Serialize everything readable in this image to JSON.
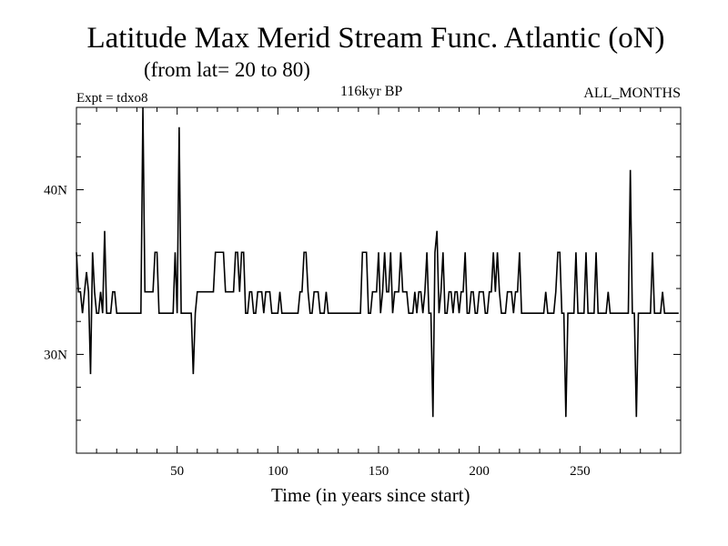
{
  "chart_data": {
    "type": "line",
    "title": "Latitude Max Merid Stream Func. Atlantic (oN)",
    "subtitle": "(from lat= 20 to 80)",
    "annotations": {
      "experiment": "Expt = tdxo8",
      "period": "116kyr BP",
      "months": "ALL_MONTHS"
    },
    "xlabel": "Time (in years since start)",
    "ylabel": "",
    "xlim": [
      0,
      300
    ],
    "ylim": [
      24,
      45
    ],
    "x_ticks": [
      50,
      100,
      150,
      200,
      250
    ],
    "x_tick_labels": [
      "50",
      "100",
      "150",
      "200",
      "250"
    ],
    "y_ticks": [
      30,
      40
    ],
    "y_tick_labels": [
      "30N",
      "40N"
    ],
    "grid": false,
    "series": [
      {
        "color": "#000000",
        "points": [
          [
            0,
            36.2
          ],
          [
            1,
            33.8
          ],
          [
            2,
            33.8
          ],
          [
            3,
            32.5
          ],
          [
            4,
            33.8
          ],
          [
            5,
            35
          ],
          [
            6,
            33.8
          ],
          [
            7,
            28.8
          ],
          [
            8,
            36.2
          ],
          [
            9,
            33.8
          ],
          [
            10,
            32.5
          ],
          [
            11,
            32.5
          ],
          [
            12,
            33.8
          ],
          [
            13,
            32.5
          ],
          [
            14,
            37.5
          ],
          [
            15,
            32.5
          ],
          [
            16,
            32.5
          ],
          [
            17,
            32.5
          ],
          [
            18,
            33.8
          ],
          [
            19,
            33.8
          ],
          [
            20,
            32.5
          ],
          [
            21,
            32.5
          ],
          [
            22,
            32.5
          ],
          [
            23,
            32.5
          ],
          [
            24,
            32.5
          ],
          [
            25,
            32.5
          ],
          [
            26,
            32.5
          ],
          [
            27,
            32.5
          ],
          [
            28,
            32.5
          ],
          [
            29,
            32.5
          ],
          [
            30,
            32.5
          ],
          [
            31,
            32.5
          ],
          [
            32,
            32.5
          ],
          [
            33,
            45
          ],
          [
            34,
            33.8
          ],
          [
            35,
            33.8
          ],
          [
            36,
            33.8
          ],
          [
            37,
            33.8
          ],
          [
            38,
            33.8
          ],
          [
            39,
            36.2
          ],
          [
            40,
            36.2
          ],
          [
            41,
            32.5
          ],
          [
            42,
            32.5
          ],
          [
            43,
            32.5
          ],
          [
            44,
            32.5
          ],
          [
            45,
            32.5
          ],
          [
            46,
            32.5
          ],
          [
            47,
            32.5
          ],
          [
            48,
            32.5
          ],
          [
            49,
            36.2
          ],
          [
            50,
            32.5
          ],
          [
            51,
            43.8
          ],
          [
            52,
            32.5
          ],
          [
            53,
            32.5
          ],
          [
            54,
            32.5
          ],
          [
            55,
            32.5
          ],
          [
            56,
            32.5
          ],
          [
            57,
            32.5
          ],
          [
            58,
            28.8
          ],
          [
            59,
            32.5
          ],
          [
            60,
            33.8
          ],
          [
            61,
            33.8
          ],
          [
            62,
            33.8
          ],
          [
            63,
            33.8
          ],
          [
            64,
            33.8
          ],
          [
            65,
            33.8
          ],
          [
            66,
            33.8
          ],
          [
            67,
            33.8
          ],
          [
            68,
            33.8
          ],
          [
            69,
            36.2
          ],
          [
            70,
            36.2
          ],
          [
            71,
            36.2
          ],
          [
            72,
            36.2
          ],
          [
            73,
            36.2
          ],
          [
            74,
            33.8
          ],
          [
            75,
            33.8
          ],
          [
            76,
            33.8
          ],
          [
            77,
            33.8
          ],
          [
            78,
            33.8
          ],
          [
            79,
            36.2
          ],
          [
            80,
            36.2
          ],
          [
            81,
            33.8
          ],
          [
            82,
            36.2
          ],
          [
            83,
            36.2
          ],
          [
            84,
            32.5
          ],
          [
            85,
            32.5
          ],
          [
            86,
            33.8
          ],
          [
            87,
            33.8
          ],
          [
            88,
            32.5
          ],
          [
            89,
            32.5
          ],
          [
            90,
            33.8
          ],
          [
            91,
            33.8
          ],
          [
            92,
            33.8
          ],
          [
            93,
            32.5
          ],
          [
            94,
            33.8
          ],
          [
            95,
            33.8
          ],
          [
            96,
            33.8
          ],
          [
            97,
            32.5
          ],
          [
            98,
            32.5
          ],
          [
            99,
            32.5
          ],
          [
            100,
            32.5
          ],
          [
            101,
            33.8
          ],
          [
            102,
            32.5
          ],
          [
            103,
            32.5
          ],
          [
            104,
            32.5
          ],
          [
            105,
            32.5
          ],
          [
            106,
            32.5
          ],
          [
            107,
            32.5
          ],
          [
            108,
            32.5
          ],
          [
            109,
            32.5
          ],
          [
            110,
            32.5
          ],
          [
            111,
            33.8
          ],
          [
            112,
            33.8
          ],
          [
            113,
            36.2
          ],
          [
            114,
            36.2
          ],
          [
            115,
            33.8
          ],
          [
            116,
            32.5
          ],
          [
            117,
            32.5
          ],
          [
            118,
            33.8
          ],
          [
            119,
            33.8
          ],
          [
            120,
            33.8
          ],
          [
            121,
            32.5
          ],
          [
            122,
            32.5
          ],
          [
            123,
            32.5
          ],
          [
            124,
            33.8
          ],
          [
            125,
            32.5
          ],
          [
            126,
            32.5
          ],
          [
            127,
            32.5
          ],
          [
            128,
            32.5
          ],
          [
            129,
            32.5
          ],
          [
            130,
            32.5
          ],
          [
            131,
            32.5
          ],
          [
            132,
            32.5
          ],
          [
            133,
            32.5
          ],
          [
            134,
            32.5
          ],
          [
            135,
            32.5
          ],
          [
            136,
            32.5
          ],
          [
            137,
            32.5
          ],
          [
            138,
            32.5
          ],
          [
            139,
            32.5
          ],
          [
            140,
            32.5
          ],
          [
            141,
            32.5
          ],
          [
            142,
            36.2
          ],
          [
            143,
            36.2
          ],
          [
            144,
            36.2
          ],
          [
            145,
            32.5
          ],
          [
            146,
            32.5
          ],
          [
            147,
            33.8
          ],
          [
            148,
            33.8
          ],
          [
            149,
            33.8
          ],
          [
            150,
            36.2
          ],
          [
            151,
            32.5
          ],
          [
            152,
            33.8
          ],
          [
            153,
            36.2
          ],
          [
            154,
            33.8
          ],
          [
            155,
            33.8
          ],
          [
            156,
            36.2
          ],
          [
            157,
            32.5
          ],
          [
            158,
            33.8
          ],
          [
            159,
            33.8
          ],
          [
            160,
            33.8
          ],
          [
            161,
            36.2
          ],
          [
            162,
            33.8
          ],
          [
            163,
            33.8
          ],
          [
            164,
            33.8
          ],
          [
            165,
            32.5
          ],
          [
            166,
            32.5
          ],
          [
            167,
            32.5
          ],
          [
            168,
            33.8
          ],
          [
            169,
            32.5
          ],
          [
            170,
            33.8
          ],
          [
            171,
            33.8
          ],
          [
            172,
            32.5
          ],
          [
            173,
            33.8
          ],
          [
            174,
            36.2
          ],
          [
            175,
            32.5
          ],
          [
            176,
            32.5
          ],
          [
            177,
            26.2
          ],
          [
            178,
            36.2
          ],
          [
            179,
            37.5
          ],
          [
            180,
            32.5
          ],
          [
            181,
            33.8
          ],
          [
            182,
            36.2
          ],
          [
            183,
            32.5
          ],
          [
            184,
            32.5
          ],
          [
            185,
            33.8
          ],
          [
            186,
            33.8
          ],
          [
            187,
            32.5
          ],
          [
            188,
            33.8
          ],
          [
            189,
            33.8
          ],
          [
            190,
            32.5
          ],
          [
            191,
            33.8
          ],
          [
            192,
            33.8
          ],
          [
            193,
            36.2
          ],
          [
            194,
            32.5
          ],
          [
            195,
            32.5
          ],
          [
            196,
            33.8
          ],
          [
            197,
            33.8
          ],
          [
            198,
            32.5
          ],
          [
            199,
            32.5
          ],
          [
            200,
            33.8
          ],
          [
            201,
            33.8
          ],
          [
            202,
            33.8
          ],
          [
            203,
            32.5
          ],
          [
            204,
            32.5
          ],
          [
            205,
            33.8
          ],
          [
            206,
            33.8
          ],
          [
            207,
            36.2
          ],
          [
            208,
            33.8
          ],
          [
            209,
            36.2
          ],
          [
            210,
            33.8
          ],
          [
            211,
            32.5
          ],
          [
            212,
            32.5
          ],
          [
            213,
            32.5
          ],
          [
            214,
            33.8
          ],
          [
            215,
            33.8
          ],
          [
            216,
            33.8
          ],
          [
            217,
            32.5
          ],
          [
            218,
            33.8
          ],
          [
            219,
            33.8
          ],
          [
            220,
            36.2
          ],
          [
            221,
            32.5
          ],
          [
            222,
            32.5
          ],
          [
            223,
            32.5
          ],
          [
            224,
            32.5
          ],
          [
            225,
            32.5
          ],
          [
            226,
            32.5
          ],
          [
            227,
            32.5
          ],
          [
            228,
            32.5
          ],
          [
            229,
            32.5
          ],
          [
            230,
            32.5
          ],
          [
            231,
            32.5
          ],
          [
            232,
            32.5
          ],
          [
            233,
            33.8
          ],
          [
            234,
            32.5
          ],
          [
            235,
            32.5
          ],
          [
            236,
            32.5
          ],
          [
            237,
            32.5
          ],
          [
            238,
            33.8
          ],
          [
            239,
            36.2
          ],
          [
            240,
            36.2
          ],
          [
            241,
            32.5
          ],
          [
            242,
            32.5
          ],
          [
            243,
            26.2
          ],
          [
            244,
            32.5
          ],
          [
            245,
            32.5
          ],
          [
            246,
            32.5
          ],
          [
            247,
            32.5
          ],
          [
            248,
            36.2
          ],
          [
            249,
            32.5
          ],
          [
            250,
            32.5
          ],
          [
            251,
            32.5
          ],
          [
            252,
            32.5
          ],
          [
            253,
            36.2
          ],
          [
            254,
            32.5
          ],
          [
            255,
            32.5
          ],
          [
            256,
            32.5
          ],
          [
            257,
            32.5
          ],
          [
            258,
            36.2
          ],
          [
            259,
            32.5
          ],
          [
            260,
            32.5
          ],
          [
            261,
            32.5
          ],
          [
            262,
            32.5
          ],
          [
            263,
            32.5
          ],
          [
            264,
            33.8
          ],
          [
            265,
            32.5
          ],
          [
            266,
            32.5
          ],
          [
            267,
            32.5
          ],
          [
            268,
            32.5
          ],
          [
            269,
            32.5
          ],
          [
            270,
            32.5
          ],
          [
            271,
            32.5
          ],
          [
            272,
            32.5
          ],
          [
            273,
            32.5
          ],
          [
            274,
            32.5
          ],
          [
            275,
            41.2
          ],
          [
            276,
            32.5
          ],
          [
            277,
            32.5
          ],
          [
            278,
            26.2
          ],
          [
            279,
            32.5
          ],
          [
            280,
            32.5
          ],
          [
            281,
            32.5
          ],
          [
            282,
            32.5
          ],
          [
            283,
            32.5
          ],
          [
            284,
            32.5
          ],
          [
            285,
            32.5
          ],
          [
            286,
            36.2
          ],
          [
            287,
            32.5
          ],
          [
            288,
            32.5
          ],
          [
            289,
            32.5
          ],
          [
            290,
            32.5
          ],
          [
            291,
            33.8
          ],
          [
            292,
            32.5
          ],
          [
            293,
            32.5
          ],
          [
            294,
            32.5
          ],
          [
            295,
            32.5
          ],
          [
            296,
            32.5
          ],
          [
            297,
            32.5
          ],
          [
            298,
            32.5
          ],
          [
            299,
            32.5
          ]
        ]
      }
    ]
  }
}
